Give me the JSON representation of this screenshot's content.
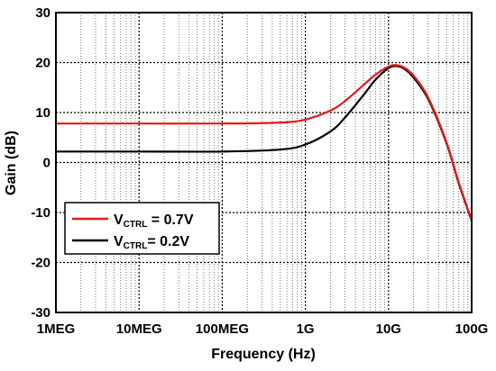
{
  "chart_data": {
    "type": "line",
    "xlabel": "Frequency (Hz)",
    "ylabel": "Gain (dB)",
    "x_scale": "log",
    "xlim": [
      "1MEG",
      "100G"
    ],
    "ylim": [
      -30,
      30
    ],
    "x_ticks": [
      {
        "value": 1000000.0,
        "label": "1MEG"
      },
      {
        "value": 10000000.0,
        "label": "10MEG"
      },
      {
        "value": 100000000.0,
        "label": "100MEG"
      },
      {
        "value": 1000000000.0,
        "label": "1G"
      },
      {
        "value": 10000000000.0,
        "label": "10G"
      },
      {
        "value": 100000000000.0,
        "label": "100G"
      }
    ],
    "y_ticks": [
      30,
      20,
      10,
      0,
      -10,
      -20,
      -30
    ],
    "grid": true,
    "legend_position": "lower-left",
    "series": [
      {
        "name_main": "V",
        "name_sub": "CTRL",
        "name_rest": " = 0.7V",
        "color": "#e41a1c",
        "x": [
          1000000.0,
          10000000.0,
          100000000.0,
          500000000.0,
          1000000000.0,
          2000000000.0,
          3000000000.0,
          5000000000.0,
          7000000000.0,
          10000000000.0,
          12000000000.0,
          15000000000.0,
          20000000000.0,
          30000000000.0,
          50000000000.0,
          70000000000.0,
          100000000000.0
        ],
        "y": [
          7.8,
          7.8,
          7.8,
          8.0,
          8.6,
          10.4,
          12.3,
          15.5,
          17.6,
          19.2,
          19.5,
          19.1,
          17.4,
          13.0,
          4.0,
          -4.0,
          -11.5
        ]
      },
      {
        "name_main": "V",
        "name_sub": "CTRL",
        "name_rest": "= 0.2V",
        "color": "#000000",
        "x": [
          1000000.0,
          10000000.0,
          100000000.0,
          500000000.0,
          1000000000.0,
          2000000000.0,
          3000000000.0,
          5000000000.0,
          7000000000.0,
          10000000000.0,
          12000000000.0,
          15000000000.0,
          20000000000.0,
          30000000000.0,
          50000000000.0,
          70000000000.0,
          100000000000.0
        ],
        "y": [
          2.2,
          2.2,
          2.2,
          2.6,
          3.6,
          6.2,
          9.0,
          13.5,
          16.6,
          18.9,
          19.3,
          18.9,
          17.0,
          12.7,
          3.8,
          -4.2,
          -11.6
        ]
      }
    ]
  }
}
